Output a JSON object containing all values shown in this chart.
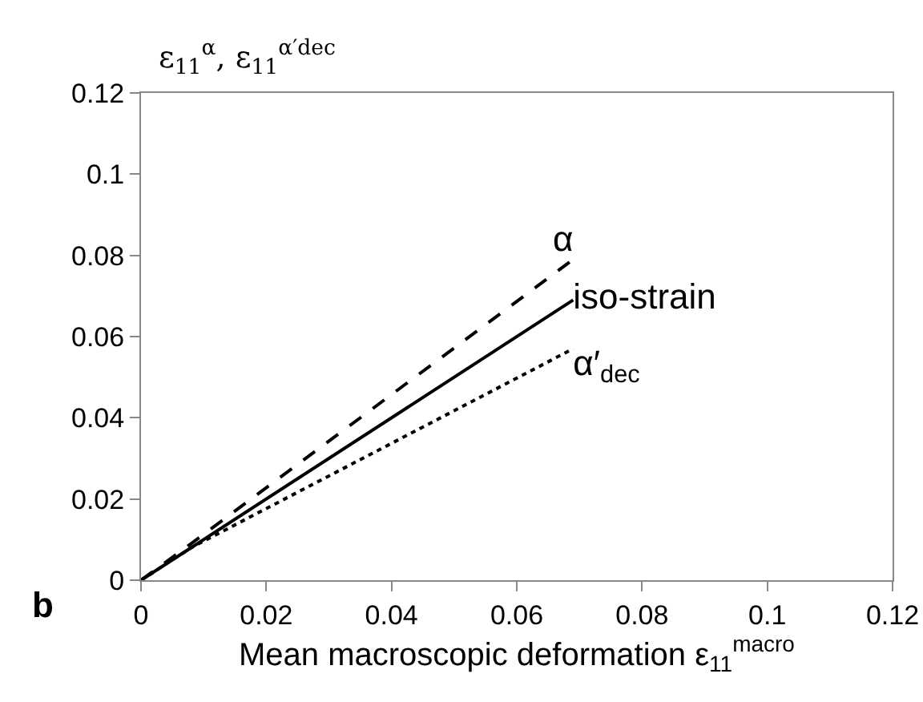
{
  "chart_data": {
    "type": "line",
    "xlabel": "Mean macroscopic deformation ε$_{11}$$^{macro}$",
    "ylabel": "ε$_{11}$$^{α}$, ε$_{11}$$^{α′dec}$",
    "x": [
      0,
      0.008,
      0.069
    ],
    "series": [
      {
        "name": "α",
        "color": "#000000",
        "values": [
          0,
          0.009,
          0.079
        ],
        "line_style": "dashed"
      },
      {
        "name": "iso-strain",
        "color": "#000000",
        "values": [
          0,
          0.008,
          0.069
        ],
        "line_style": "solid"
      },
      {
        "name": "α′$_{dec}$",
        "color": "#000000",
        "values": [
          0,
          0.008,
          0.057
        ],
        "line_style": "dotted"
      }
    ],
    "annotations": [
      "b"
    ],
    "xlim": [
      0,
      0.12
    ],
    "xticks": [
      0,
      0.02,
      0.04,
      0.06,
      0.08,
      0.1,
      0.12
    ],
    "ylim": [
      0,
      0.12
    ],
    "yticks": [
      0,
      0.02,
      0.04,
      0.06,
      0.08,
      0.1,
      0.12
    ],
    "grid": false,
    "legend": false,
    "marker": "none"
  }
}
